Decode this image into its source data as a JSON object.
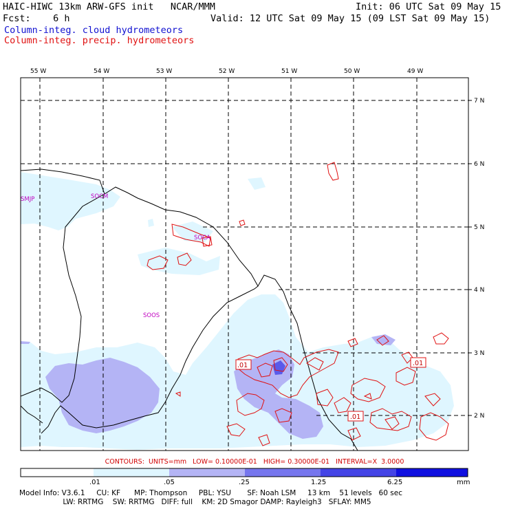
{
  "header": {
    "model_line": "HAIC-HIWC 13km ARW-GFS init   NCAR/MMM",
    "init_line": "Init: 06 UTC Sat 09 May 15",
    "fcst_line": "Fcst:    6 h",
    "valid_line": "Valid: 12 UTC Sat 09 May 15 (09 LST Sat 09 May 15)",
    "field1": "Column-integ. cloud hydrometeors",
    "field2": "Column-integ. precip. hydrometeors",
    "field1_color": "#1010d0",
    "field2_color": "#e01010"
  },
  "axes": {
    "lon_labels": [
      "55 W",
      "54 W",
      "53 W",
      "52 W",
      "51 W",
      "50 W",
      "49 W"
    ],
    "lat_labels": [
      "7 N",
      "6 N",
      "5 N",
      "4 N",
      "3 N",
      "2 N"
    ]
  },
  "stations": [
    "SMJP",
    "SOCM",
    "SOCA",
    "SOOS"
  ],
  "contour_labels": [
    ".01",
    ".01",
    ".01"
  ],
  "contours_info": "CONTOURS:  UNITS=mm   LOW= 0.10000E-01   HIGH= 0.30000E-01   INTERVAL=X  3.0000",
  "colorbar": {
    "ticks": [
      ".01",
      ".05",
      ".25",
      "1.25",
      "6.25"
    ],
    "units": "mm",
    "colors": [
      "#ffffff",
      "#dff6ff",
      "#b4b4f5",
      "#7676ee",
      "#4444e6",
      "#1010e0"
    ]
  },
  "footer": {
    "line1": "Model Info: V3.6.1     CU: KF      MP: Thompson     PBL: YSU       SF: Noah LSM     13 km    51 levels   60 sec",
    "line2": "                   LW: RRTMG    SW: RRTMG   DIFF: full    KM: 2D Smagor DAMP: Rayleigh3   SFLAY: MM5"
  }
}
